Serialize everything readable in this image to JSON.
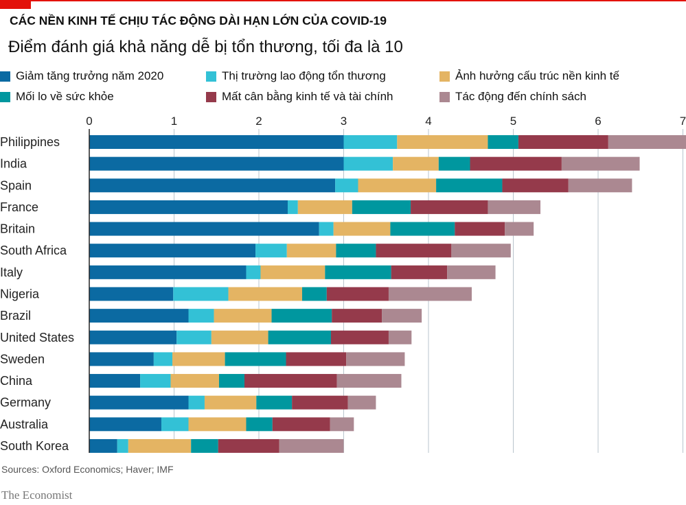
{
  "title": "CÁC NỀN KINH TẾ CHỊU TÁC ĐỘNG DÀI HẠN LỚN CỦA COVID-19",
  "subtitle": "Điểm đánh giá khả năng dễ bị tổn thương, tối đa là 10",
  "source": "Sources: Oxford Economics; Haver; IMF",
  "brand": "The Economist",
  "chart_data": {
    "type": "bar",
    "orientation": "horizontal",
    "stacked": true,
    "xlim": [
      0,
      7
    ],
    "xticks": [
      "0",
      "1",
      "2",
      "3",
      "4",
      "5",
      "6",
      "7"
    ],
    "grid": true,
    "legend_placement": "top",
    "categories": [
      "Philippines",
      "India",
      "Spain",
      "France",
      "Britain",
      "South Africa",
      "Italy",
      "Nigeria",
      "Brazil",
      "United States",
      "Sweden",
      "China",
      "Germany",
      "Australia",
      "South Korea"
    ],
    "series": [
      {
        "name": "Giảm tăng trưởng năm 2020",
        "color": "#0b6aa2",
        "values": [
          3.0,
          3.0,
          2.9,
          2.34,
          2.71,
          1.96,
          1.85,
          0.99,
          1.17,
          1.03,
          0.76,
          0.6,
          1.17,
          0.85,
          0.33
        ]
      },
      {
        "name": "Thị trường lao động tổn thương",
        "color": "#33c1d6",
        "values": [
          0.63,
          0.58,
          0.27,
          0.12,
          0.17,
          0.37,
          0.17,
          0.65,
          0.3,
          0.41,
          0.22,
          0.36,
          0.19,
          0.32,
          0.13
        ]
      },
      {
        "name": "Ảnh hưởng cấu trúc nền kinh tế",
        "color": "#e4b463",
        "values": [
          1.07,
          0.54,
          0.92,
          0.64,
          0.67,
          0.58,
          0.76,
          0.87,
          0.68,
          0.67,
          0.62,
          0.57,
          0.61,
          0.68,
          0.74
        ]
      },
      {
        "name": "Mối lo về sức khỏe",
        "color": "#00979f",
        "values": [
          0.36,
          0.37,
          0.78,
          0.69,
          0.76,
          0.47,
          0.78,
          0.29,
          0.71,
          0.74,
          0.72,
          0.3,
          0.42,
          0.31,
          0.32
        ]
      },
      {
        "name": "Mất cân bằng kinh tế và tài chính",
        "color": "#953a4b",
        "values": [
          1.06,
          1.08,
          0.78,
          0.91,
          0.59,
          0.89,
          0.66,
          0.73,
          0.59,
          0.68,
          0.71,
          1.09,
          0.66,
          0.68,
          0.72
        ]
      },
      {
        "name": "Tác động đến chính sách",
        "color": "#ab8891",
        "values": [
          0.93,
          0.92,
          0.75,
          0.62,
          0.34,
          0.7,
          0.57,
          0.98,
          0.47,
          0.27,
          0.69,
          0.76,
          0.33,
          0.28,
          0.76
        ]
      }
    ]
  }
}
